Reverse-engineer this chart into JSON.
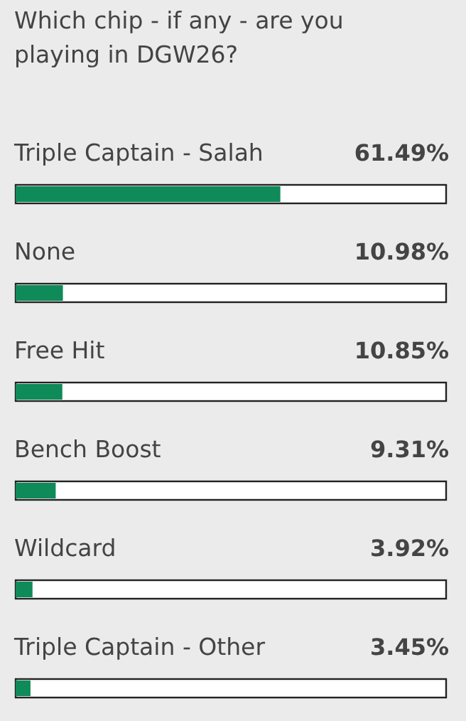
{
  "chart_data": {
    "type": "bar",
    "orientation": "horizontal",
    "title": "Which chip - if any - are you playing in DGW26?",
    "categories": [
      "Triple Captain - Salah",
      "None",
      "Free Hit",
      "Bench Boost",
      "Wildcard",
      "Triple Captain - Other"
    ],
    "values": [
      61.49,
      10.98,
      10.85,
      9.31,
      3.92,
      3.45
    ],
    "value_labels": [
      "61.49%",
      "10.98%",
      "10.85%",
      "9.31%",
      "3.92%",
      "3.45%"
    ],
    "color": "#0f8a59",
    "xlim": [
      0,
      100
    ]
  }
}
